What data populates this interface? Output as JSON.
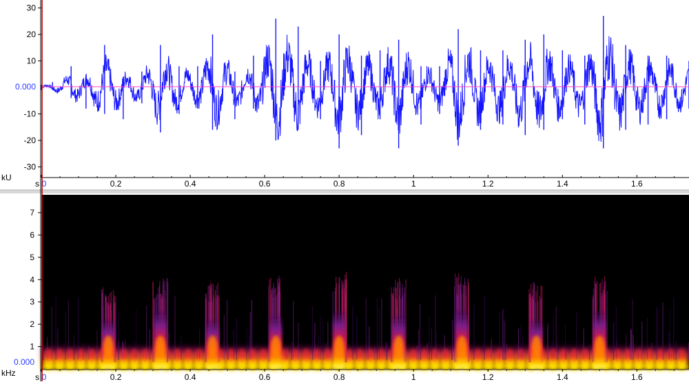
{
  "chart_data": [
    {
      "type": "line",
      "ylabel": "kU",
      "xlabel": "s",
      "zero_label": "0.000",
      "xlim": [
        0,
        1.74
      ],
      "ylim": [
        -33,
        33
      ],
      "yticks": [
        30,
        20,
        10,
        -10,
        -20,
        -30
      ],
      "xticks": [
        0,
        0.2,
        0.4,
        0.6,
        0.8,
        1,
        1.2,
        1.4,
        1.6
      ],
      "xtick_labels": [
        "0",
        "0.2",
        "0.4",
        "0.6",
        "0.8",
        "1",
        "1.2",
        "1.4",
        "1.6"
      ],
      "series": [
        {
          "color": "#1414ff",
          "envelope": [
            {
              "t": 0.0,
              "lo": -1,
              "hi": 1
            },
            {
              "t": 0.03,
              "lo": -1,
              "hi": 2
            },
            {
              "t": 0.08,
              "lo": -4,
              "hi": 8
            },
            {
              "t": 0.12,
              "lo": -8,
              "hi": 4
            },
            {
              "t": 0.17,
              "lo": -10,
              "hi": 16
            },
            {
              "t": 0.22,
              "lo": -12,
              "hi": 4
            },
            {
              "t": 0.27,
              "lo": -6,
              "hi": 6
            },
            {
              "t": 0.32,
              "lo": -17,
              "hi": 16
            },
            {
              "t": 0.37,
              "lo": -10,
              "hi": 8
            },
            {
              "t": 0.42,
              "lo": -8,
              "hi": 8
            },
            {
              "t": 0.46,
              "lo": -16,
              "hi": 20
            },
            {
              "t": 0.52,
              "lo": -12,
              "hi": 6
            },
            {
              "t": 0.57,
              "lo": -8,
              "hi": 12
            },
            {
              "t": 0.63,
              "lo": -20,
              "hi": 26
            },
            {
              "t": 0.69,
              "lo": -16,
              "hi": 23
            },
            {
              "t": 0.75,
              "lo": -12,
              "hi": 10
            },
            {
              "t": 0.8,
              "lo": -23,
              "hi": 20
            },
            {
              "t": 0.86,
              "lo": -18,
              "hi": 12
            },
            {
              "t": 0.91,
              "lo": -12,
              "hi": 14
            },
            {
              "t": 0.96,
              "lo": -23,
              "hi": 18
            },
            {
              "t": 1.02,
              "lo": -14,
              "hi": 8
            },
            {
              "t": 1.07,
              "lo": -10,
              "hi": 8
            },
            {
              "t": 1.12,
              "lo": -22,
              "hi": 22
            },
            {
              "t": 1.18,
              "lo": -16,
              "hi": 14
            },
            {
              "t": 1.24,
              "lo": -14,
              "hi": 14
            },
            {
              "t": 1.3,
              "lo": -18,
              "hi": 18
            },
            {
              "t": 1.35,
              "lo": -16,
              "hi": 20
            },
            {
              "t": 1.4,
              "lo": -12,
              "hi": 14
            },
            {
              "t": 1.46,
              "lo": -14,
              "hi": 12
            },
            {
              "t": 1.51,
              "lo": -23,
              "hi": 27
            },
            {
              "t": 1.57,
              "lo": -16,
              "hi": 16
            },
            {
              "t": 1.63,
              "lo": -14,
              "hi": 12
            },
            {
              "t": 1.68,
              "lo": -12,
              "hi": 12
            },
            {
              "t": 1.74,
              "lo": -8,
              "hi": 10
            }
          ]
        }
      ]
    },
    {
      "type": "heatmap",
      "ylabel": "kHz",
      "xlabel": "s",
      "zero_label": "0.000",
      "xlim": [
        0,
        1.74
      ],
      "ylim": [
        0,
        7.8
      ],
      "yticks": [
        7,
        6,
        5,
        4,
        3,
        2,
        1
      ],
      "xticks": [
        0,
        0.2,
        0.4,
        0.6,
        0.8,
        1,
        1.2,
        1.4,
        1.6
      ],
      "xtick_labels": [
        "0",
        "0.2",
        "0.4",
        "0.6",
        "0.8",
        "1",
        "1.2",
        "1.4",
        "1.6"
      ],
      "background": "#000000",
      "colormap": [
        "#000000",
        "#3a0a5a",
        "#7a1f8a",
        "#c2185b",
        "#ff2a2a",
        "#ff8a00",
        "#ffe000",
        "#ffffa0"
      ],
      "bursts": [
        {
          "t": 0.18,
          "top": 3.7,
          "peak": 2.2
        },
        {
          "t": 0.32,
          "top": 4.1,
          "peak": 2.6
        },
        {
          "t": 0.46,
          "top": 4.0,
          "peak": 2.2
        },
        {
          "t": 0.63,
          "top": 4.2,
          "peak": 2.4
        },
        {
          "t": 0.8,
          "top": 4.4,
          "peak": 2.6
        },
        {
          "t": 0.96,
          "top": 4.1,
          "peak": 2.4
        },
        {
          "t": 1.13,
          "top": 4.3,
          "peak": 2.6
        },
        {
          "t": 1.33,
          "top": 3.9,
          "peak": 2.2
        },
        {
          "t": 1.5,
          "top": 4.2,
          "peak": 2.6
        }
      ]
    }
  ]
}
